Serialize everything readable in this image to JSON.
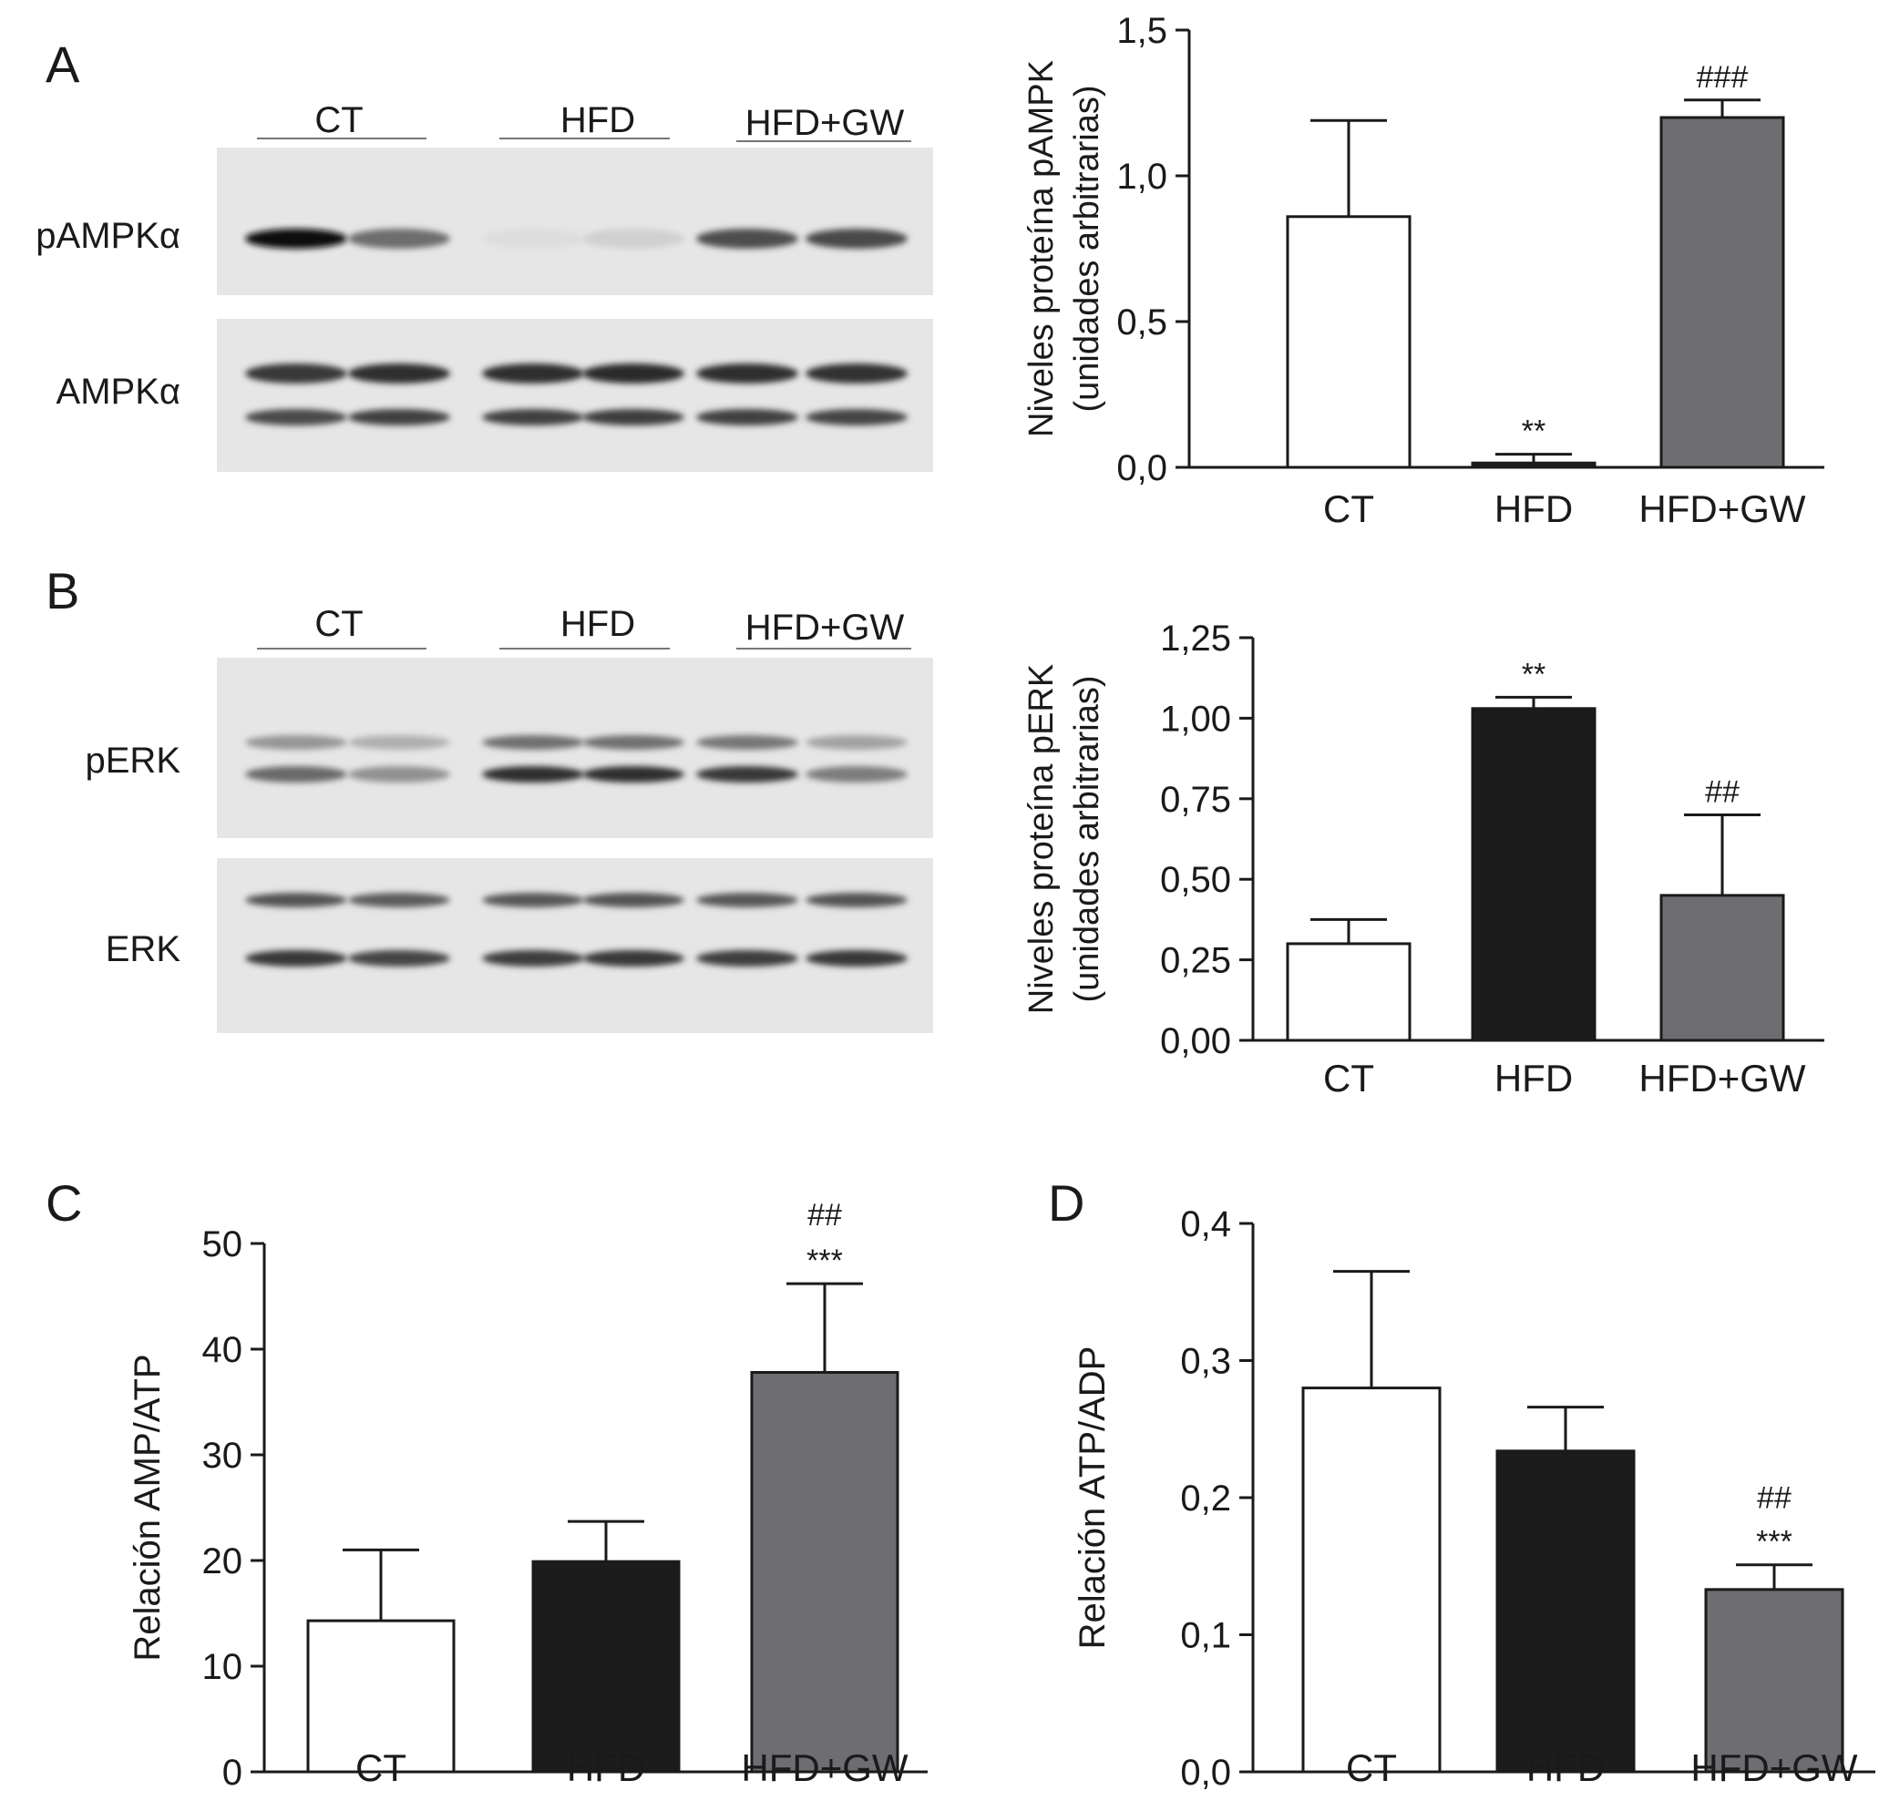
{
  "panels": [
    {
      "id": "A",
      "letter": "A"
    },
    {
      "id": "B",
      "letter": "B"
    },
    {
      "id": "C",
      "letter": "C"
    },
    {
      "id": "D",
      "letter": "D"
    }
  ],
  "blots": {
    "A": {
      "groups": [
        "CT",
        "HFD",
        "HFD+GW"
      ],
      "rows": [
        {
          "label": "pAMPKα",
          "lanes": [
            1.0,
            0.55,
            0.02,
            0.08,
            0.7,
            0.72
          ]
        },
        {
          "label": "AMPKα",
          "lanes": [
            0.85,
            0.9,
            0.9,
            0.92,
            0.9,
            0.88
          ]
        }
      ]
    },
    "B": {
      "groups": [
        "CT",
        "HFD",
        "HFD+GW"
      ],
      "rows": [
        {
          "label": "pERK",
          "lanes": [
            0.6,
            0.4,
            0.9,
            0.9,
            0.85,
            0.5
          ]
        },
        {
          "label": "ERK",
          "lanes": [
            0.8,
            0.75,
            0.78,
            0.8,
            0.78,
            0.8
          ]
        }
      ]
    }
  },
  "colors": {
    "CT": "#ffffff",
    "HFD": "#1c1c1c",
    "HFD+GW": "#6e6e72",
    "axis": "#1a1a1a"
  },
  "chart_data": [
    {
      "panel": "A",
      "type": "bar",
      "categories": [
        "CT",
        "HFD",
        "HFD+GW"
      ],
      "values": [
        0.86,
        0.015,
        1.2
      ],
      "errors": [
        0.33,
        0.03,
        0.06
      ],
      "annotations": [
        [],
        [
          "**"
        ],
        [
          "###"
        ]
      ],
      "ylabel_lines": [
        "Niveles proteína pAMPK",
        "(unidades arbitrarias)"
      ],
      "ylim": [
        0,
        1.5
      ],
      "yticks": [
        0,
        0.5,
        1.0,
        1.5
      ],
      "ytick_labels": [
        "0,0",
        "0,5",
        "1,0",
        "1,5"
      ],
      "grid": false
    },
    {
      "panel": "B",
      "type": "bar",
      "categories": [
        "CT",
        "HFD",
        "HFD+GW"
      ],
      "values": [
        0.3,
        1.03,
        0.45
      ],
      "errors": [
        0.075,
        0.035,
        0.25
      ],
      "annotations": [
        [],
        [
          "**"
        ],
        [
          "##"
        ]
      ],
      "ylabel_lines": [
        "Niveles proteína pERK",
        "(unidades arbitrarias)"
      ],
      "ylim": [
        0,
        1.25
      ],
      "yticks": [
        0,
        0.25,
        0.5,
        0.75,
        1.0,
        1.25
      ],
      "ytick_labels": [
        "0,00",
        "0,25",
        "0,50",
        "0,75",
        "1,00",
        "1,25"
      ],
      "grid": false
    },
    {
      "panel": "C",
      "type": "bar",
      "categories": [
        "CT",
        "HFD",
        "HFD+GW"
      ],
      "values": [
        14.3,
        19.9,
        37.8
      ],
      "errors": [
        6.7,
        3.8,
        8.4
      ],
      "annotations": [
        [],
        [],
        [
          "***",
          "##"
        ]
      ],
      "ylabel_lines": [
        "Relación AMP/ATP"
      ],
      "ylim": [
        0,
        50
      ],
      "yticks": [
        0,
        10,
        20,
        30,
        40,
        50
      ],
      "ytick_labels": [
        "0",
        "10",
        "20",
        "30",
        "40",
        "50"
      ],
      "grid": false
    },
    {
      "panel": "D",
      "type": "bar",
      "categories": [
        "CT",
        "HFD",
        "HFD+GW"
      ],
      "values": [
        0.28,
        0.234,
        0.133
      ],
      "errors": [
        0.085,
        0.032,
        0.018
      ],
      "annotations": [
        [],
        [],
        [
          "***",
          "##"
        ]
      ],
      "ylabel_lines": [
        "Relación ATP/ADP"
      ],
      "ylim": [
        0,
        0.4
      ],
      "yticks": [
        0,
        0.1,
        0.2,
        0.3,
        0.4
      ],
      "ytick_labels": [
        "0,0",
        "0,1",
        "0,2",
        "0,3",
        "0,4"
      ],
      "grid": false
    }
  ]
}
